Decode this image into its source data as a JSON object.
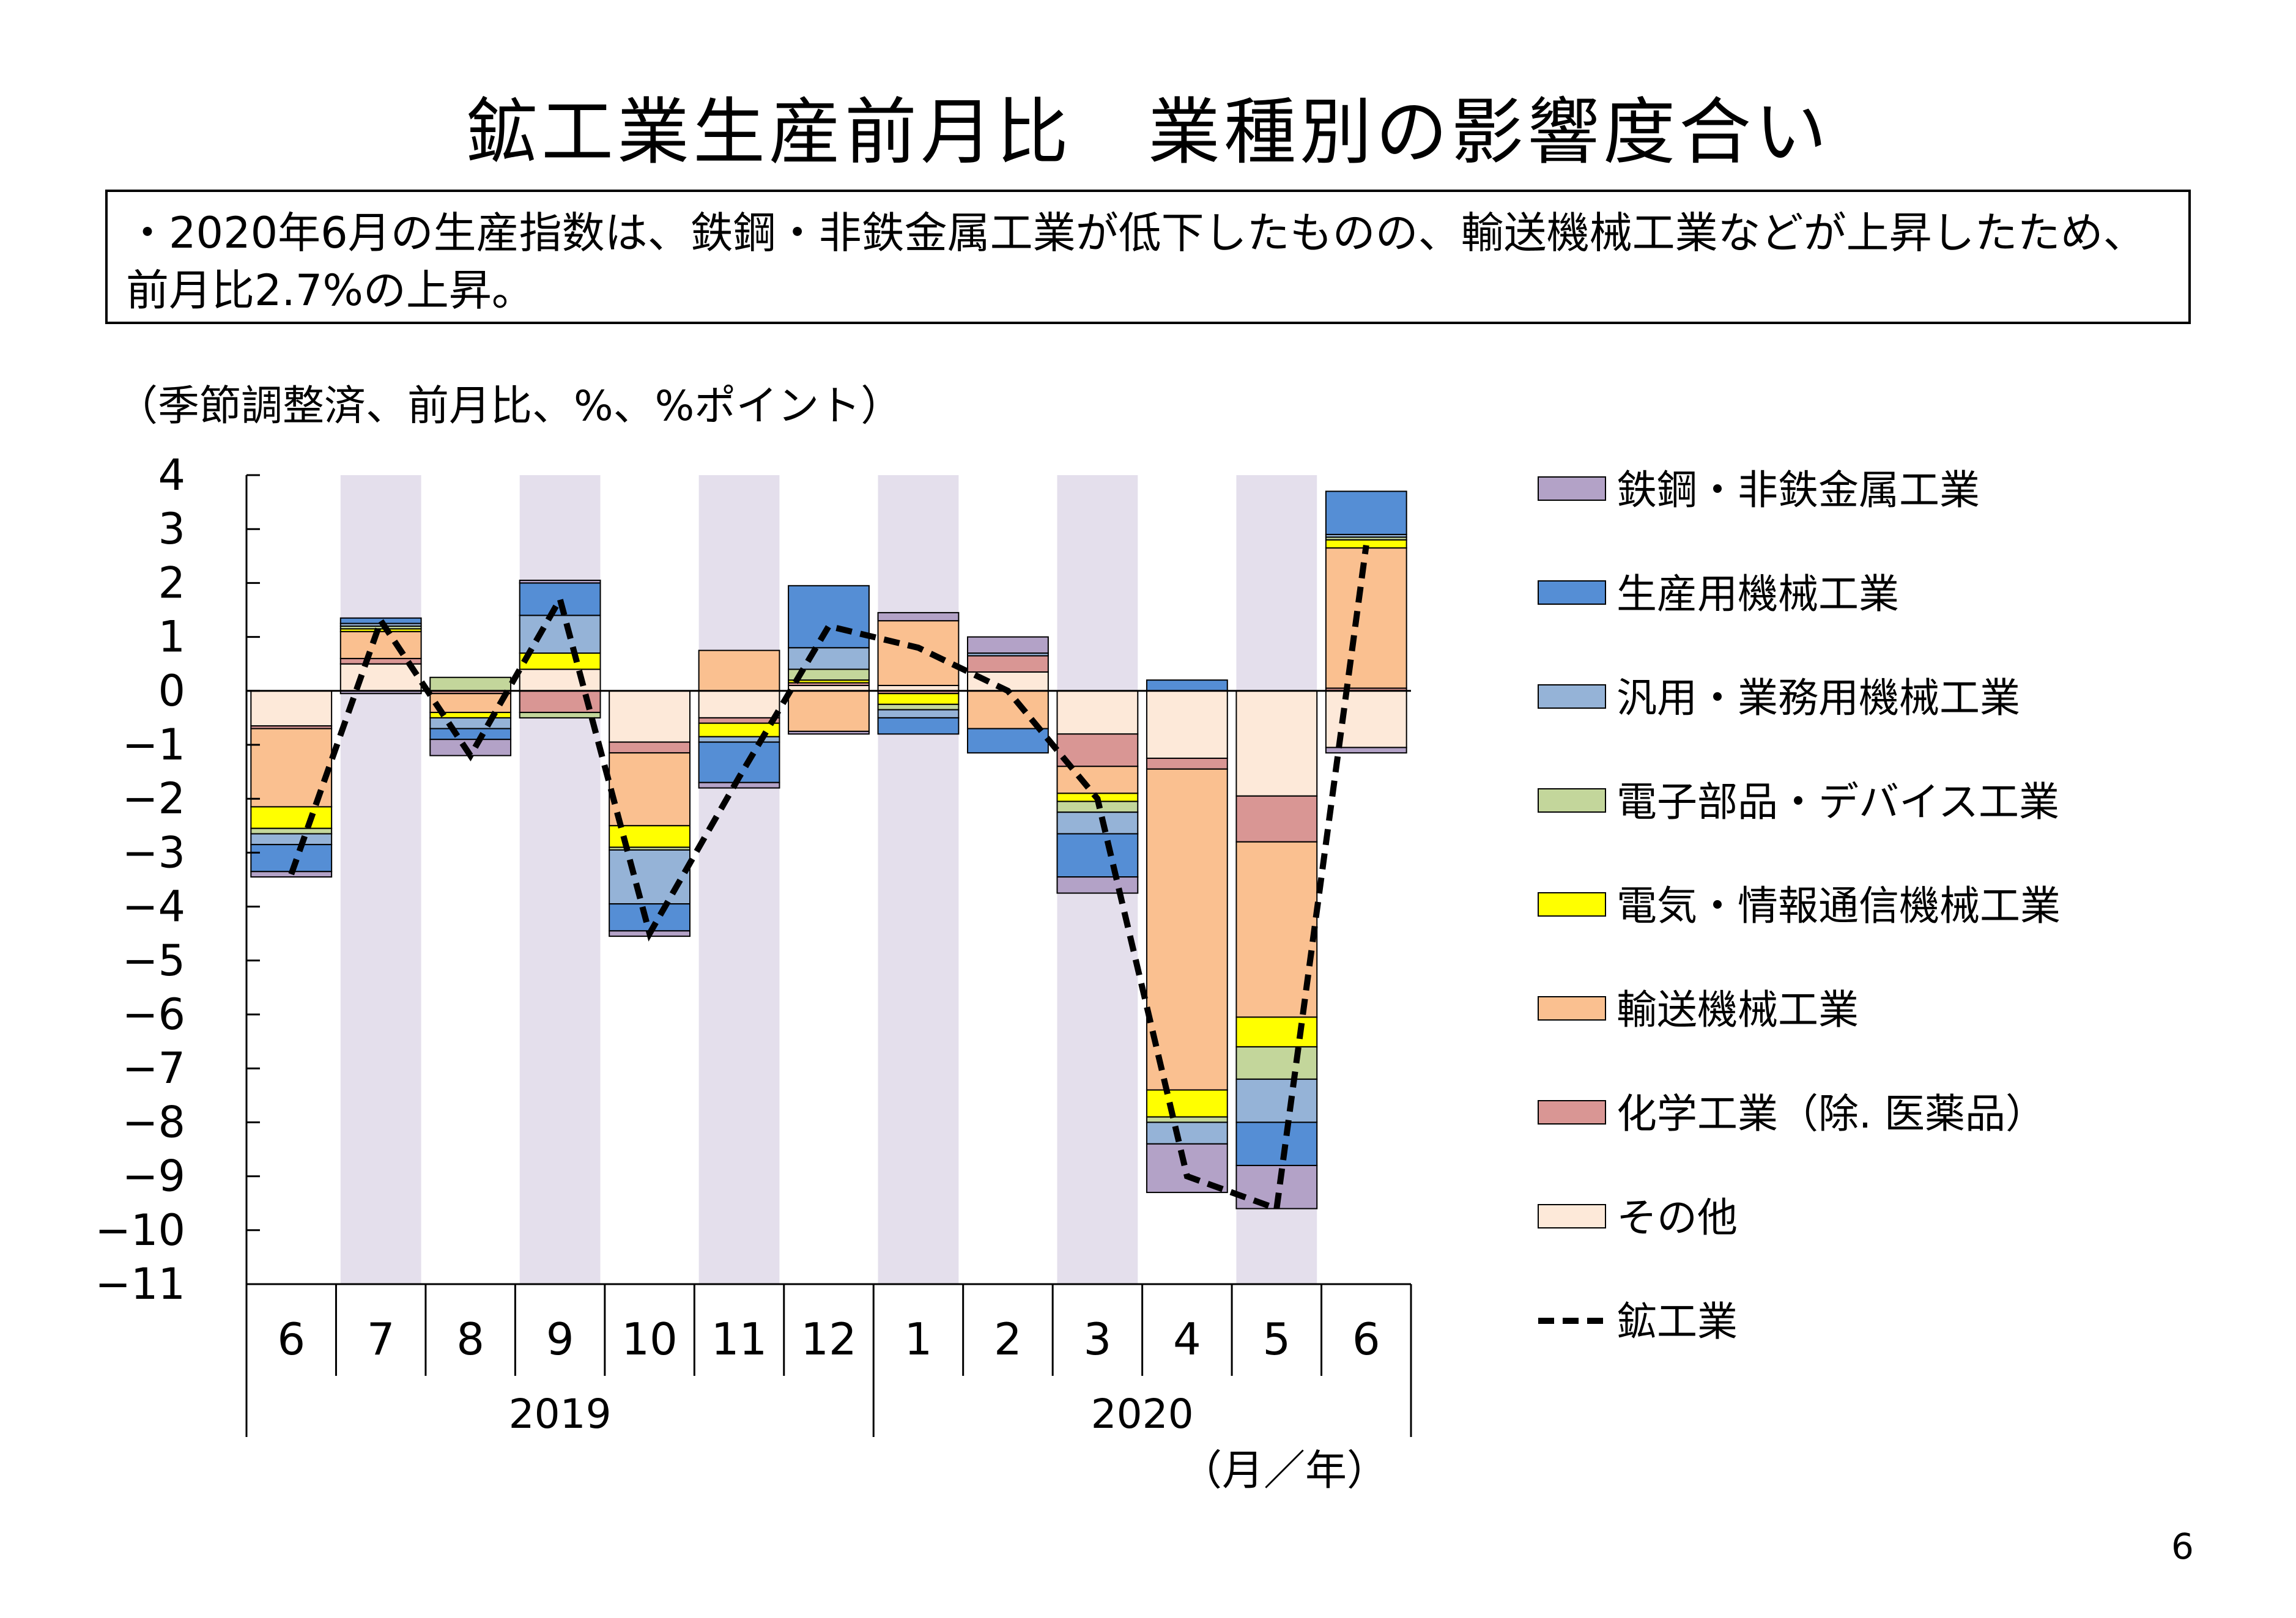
{
  "title": "鉱工業生産前月比　業種別の影響度合い",
  "summary": "・2020年6月の生産指数は、鉄鋼・非鉄金属工業が低下したものの、輸送機械工業などが上昇したため、前月比2.7%の上昇。",
  "page_number": "6",
  "chart_data": {
    "type": "bar",
    "stacked": true,
    "unit_label": "（季節調整済、前月比、%、%ポイント）",
    "x_axis_unit": "（月／年）",
    "categories": [
      "6",
      "7",
      "8",
      "9",
      "10",
      "11",
      "12",
      "1",
      "2",
      "3",
      "4",
      "5",
      "6"
    ],
    "year_groups": [
      {
        "label": "2019",
        "months": [
          "6",
          "7",
          "8",
          "9",
          "10",
          "11",
          "12"
        ]
      },
      {
        "label": "2020",
        "months": [
          "1",
          "2",
          "3",
          "4",
          "5",
          "6"
        ]
      }
    ],
    "shaded_months": [
      "7",
      "9",
      "11",
      "1",
      "3",
      "5"
    ],
    "ylim": [
      -11,
      4
    ],
    "yticks": [
      "4",
      "3",
      "2",
      "1",
      "0",
      "−1",
      "−2",
      "−3",
      "−4",
      "−5",
      "−6",
      "−7",
      "−8",
      "−9",
      "−10",
      "−11"
    ],
    "series": [
      {
        "name": "その他",
        "color": "#fde9d9",
        "values": [
          -0.65,
          0.5,
          0,
          0.4,
          -0.95,
          -0.5,
          0.1,
          0.1,
          0.35,
          -0.8,
          -1.25,
          -1.95,
          -1.05
        ]
      },
      {
        "name": "化学工業（除. 医薬品）",
        "color": "#d99694",
        "values": [
          -0.05,
          0.1,
          -0.05,
          -0.4,
          -0.2,
          -0.1,
          0.05,
          -0.05,
          0.3,
          -0.6,
          -0.2,
          -0.85,
          0.05
        ]
      },
      {
        "name": "輸送機械工業",
        "color": "#fac090",
        "values": [
          -1.45,
          0.5,
          -0.35,
          0.0,
          -1.35,
          0.75,
          -0.75,
          1.2,
          -0.7,
          -0.5,
          -5.95,
          -3.25,
          2.6
        ]
      },
      {
        "name": "電気・情報通信機械工業",
        "color": "#ffff00",
        "values": [
          -0.4,
          0.05,
          -0.1,
          0.3,
          -0.4,
          -0.25,
          0.05,
          -0.2,
          0.0,
          -0.15,
          -0.5,
          -0.55,
          0.15
        ]
      },
      {
        "name": "電子部品・デバイス工業",
        "color": "#c3d69b",
        "values": [
          -0.1,
          0.05,
          0.25,
          -0.1,
          -0.05,
          0.0,
          0.2,
          -0.1,
          0.0,
          -0.2,
          -0.1,
          -0.6,
          0.05
        ]
      },
      {
        "name": "汎用・業務用機械工業",
        "color": "#95b3d7",
        "values": [
          -0.2,
          0.05,
          -0.2,
          0.7,
          -1.0,
          -0.1,
          0.4,
          -0.15,
          0.05,
          -0.4,
          -0.4,
          -0.8,
          0.05
        ]
      },
      {
        "name": "生産用機械工業",
        "color": "#558ed5",
        "values": [
          -0.5,
          0.1,
          -0.2,
          0.6,
          -0.5,
          -0.75,
          1.15,
          -0.3,
          -0.45,
          -0.8,
          0.2,
          -0.8,
          0.8
        ]
      },
      {
        "name": "鉄鋼・非鉄金属工業",
        "color": "#b3a2c7",
        "values": [
          -0.1,
          -0.05,
          -0.3,
          0.05,
          -0.1,
          -0.1,
          -0.05,
          0.15,
          0.3,
          -0.3,
          -0.9,
          -0.8,
          -0.1
        ]
      }
    ],
    "line_series": {
      "name": "鉱工業",
      "color": "#000000",
      "values": [
        -3.4,
        1.3,
        -1.2,
        1.7,
        -4.5,
        -1.6,
        1.2,
        0.8,
        0.0,
        -2.0,
        -9.0,
        -9.6,
        2.7
      ]
    },
    "legend_order": [
      "鉄鋼・非鉄金属工業",
      "生産用機械工業",
      "汎用・業務用機械工業",
      "電子部品・デバイス工業",
      "電気・情報通信機械工業",
      "輸送機械工業",
      "化学工業（除. 医薬品）",
      "その他",
      "鉱工業"
    ]
  }
}
